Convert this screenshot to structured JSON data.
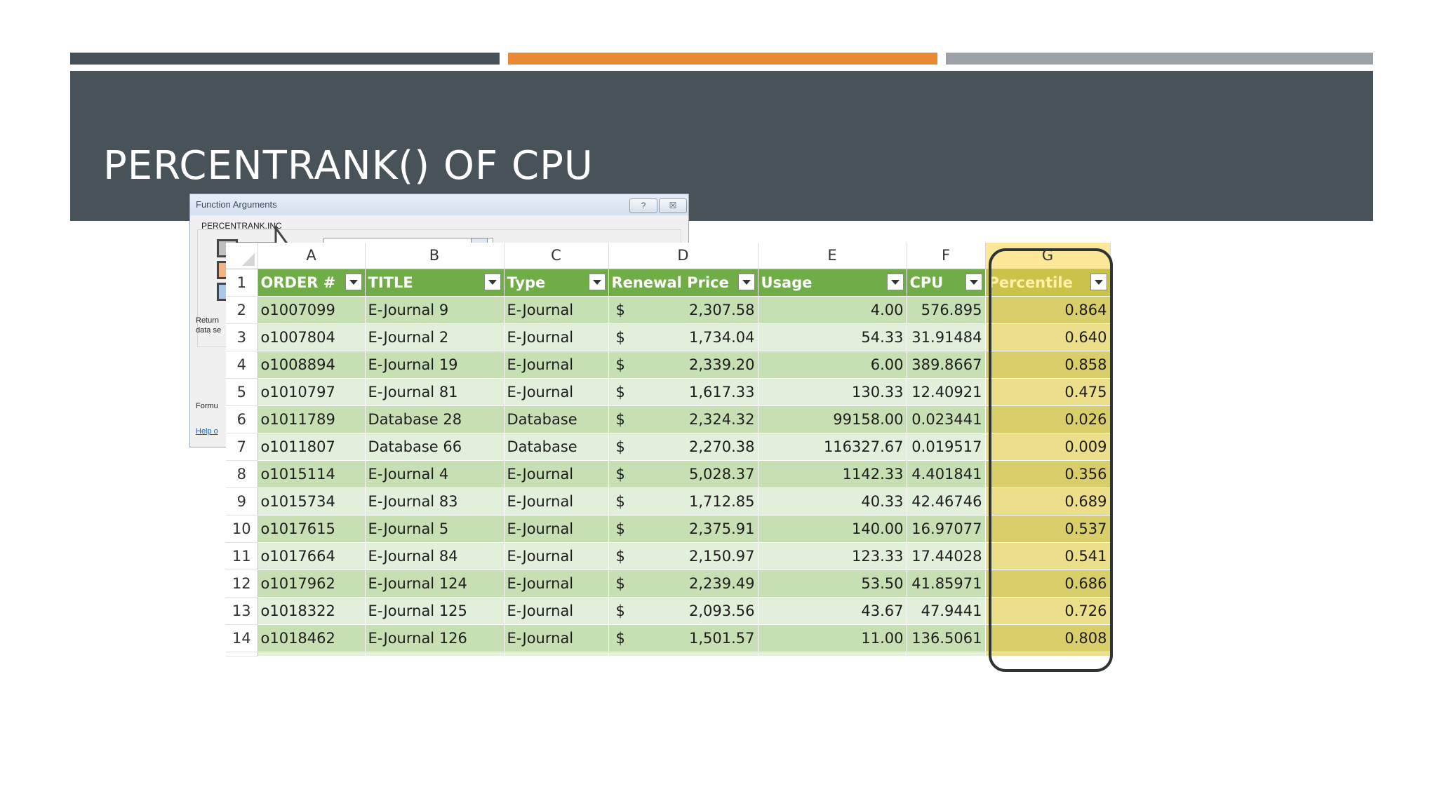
{
  "slide": {
    "title": "PERCENTRANK() OF CPU",
    "colors": {
      "bar_dark": "#465059",
      "bar_orange": "#ea8933",
      "bar_gray": "#9ca1a7",
      "banner": "#475259",
      "table_header": "#70ad47",
      "percentile_highlight": "#fde89a"
    }
  },
  "dialog": {
    "title": "Function Arguments",
    "help_button": "?",
    "close_button": "☒",
    "function_name": "PERCENTRANK.INC",
    "returns_text_1": "Return",
    "returns_text_2": "data se",
    "formula_label": "Formu",
    "help_link": "Help o"
  },
  "sheet": {
    "column_letters": [
      "A",
      "B",
      "C",
      "D",
      "E",
      "F",
      "G"
    ],
    "headers": [
      "ORDER #",
      "TITLE",
      "Type",
      "Renewal Price",
      "Usage",
      "CPU",
      "Percentile"
    ],
    "currency_symbol": "$",
    "rows": [
      {
        "n": "2",
        "order": "o1007099",
        "title": "E-Journal 9",
        "type": "E-Journal",
        "price": "2,307.58",
        "usage": "4.00",
        "cpu": "576.895",
        "pct": "0.864"
      },
      {
        "n": "3",
        "order": "o1007804",
        "title": "E-Journal 2",
        "type": "E-Journal",
        "price": "1,734.04",
        "usage": "54.33",
        "cpu": "31.91484",
        "pct": "0.640"
      },
      {
        "n": "4",
        "order": "o1008894",
        "title": "E-Journal 19",
        "type": "E-Journal",
        "price": "2,339.20",
        "usage": "6.00",
        "cpu": "389.8667",
        "pct": "0.858"
      },
      {
        "n": "5",
        "order": "o1010797",
        "title": "E-Journal 81",
        "type": "E-Journal",
        "price": "1,617.33",
        "usage": "130.33",
        "cpu": "12.40921",
        "pct": "0.475"
      },
      {
        "n": "6",
        "order": "o1011789",
        "title": "Database 28",
        "type": "Database",
        "price": "2,324.32",
        "usage": "99158.00",
        "cpu": "0.023441",
        "pct": "0.026"
      },
      {
        "n": "7",
        "order": "o1011807",
        "title": "Database 66",
        "type": "Database",
        "price": "2,270.38",
        "usage": "116327.67",
        "cpu": "0.019517",
        "pct": "0.009"
      },
      {
        "n": "8",
        "order": "o1015114",
        "title": "E-Journal 4",
        "type": "E-Journal",
        "price": "5,028.37",
        "usage": "1142.33",
        "cpu": "4.401841",
        "pct": "0.356"
      },
      {
        "n": "9",
        "order": "o1015734",
        "title": "E-Journal 83",
        "type": "E-Journal",
        "price": "1,712.85",
        "usage": "40.33",
        "cpu": "42.46746",
        "pct": "0.689"
      },
      {
        "n": "10",
        "order": "o1017615",
        "title": "E-Journal 5",
        "type": "E-Journal",
        "price": "2,375.91",
        "usage": "140.00",
        "cpu": "16.97077",
        "pct": "0.537"
      },
      {
        "n": "11",
        "order": "o1017664",
        "title": "E-Journal 84",
        "type": "E-Journal",
        "price": "2,150.97",
        "usage": "123.33",
        "cpu": "17.44028",
        "pct": "0.541"
      },
      {
        "n": "12",
        "order": "o1017962",
        "title": "E-Journal 124",
        "type": "E-Journal",
        "price": "2,239.49",
        "usage": "53.50",
        "cpu": "41.85971",
        "pct": "0.686"
      },
      {
        "n": "13",
        "order": "o1018322",
        "title": "E-Journal 125",
        "type": "E-Journal",
        "price": "2,093.56",
        "usage": "43.67",
        "cpu": "47.9441",
        "pct": "0.726"
      },
      {
        "n": "14",
        "order": "o1018462",
        "title": "E-Journal 126",
        "type": "E-Journal",
        "price": "1,501.57",
        "usage": "11.00",
        "cpu": "136.5061",
        "pct": "0.808"
      }
    ]
  }
}
